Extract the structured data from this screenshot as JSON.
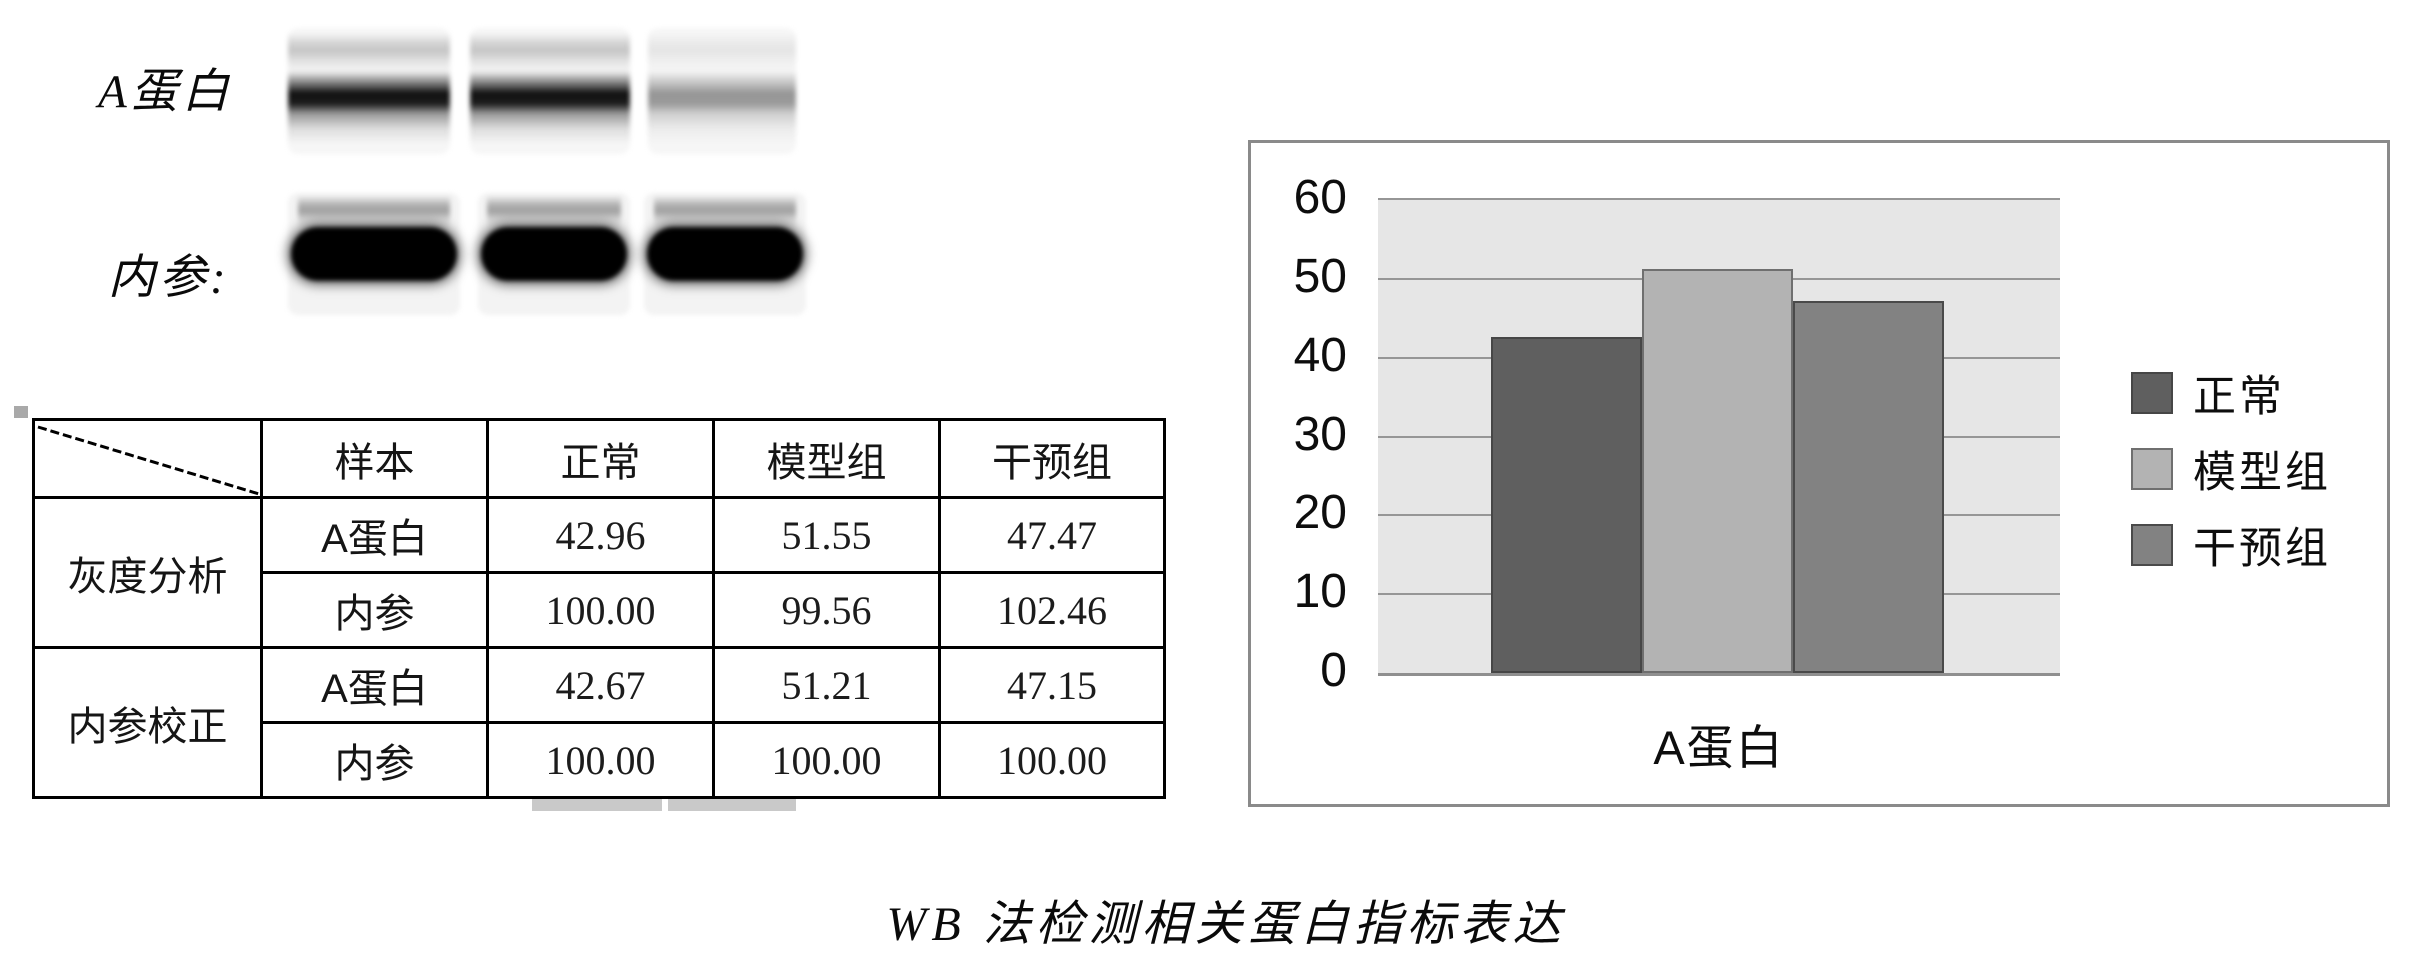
{
  "wb_panel": {
    "protein_label": "A蛋白",
    "reference_label": "内参:"
  },
  "table": {
    "header": [
      "样本",
      "正常",
      "模型组",
      "干预组"
    ],
    "groups": [
      {
        "label": "灰度分析",
        "rows": [
          {
            "sample": "A蛋白",
            "values": [
              "42.96",
              "51.55",
              "47.47"
            ]
          },
          {
            "sample": "内参",
            "values": [
              "100.00",
              "99.56",
              "102.46"
            ]
          }
        ]
      },
      {
        "label": "内参校正",
        "rows": [
          {
            "sample": "A蛋白",
            "values": [
              "42.67",
              "51.21",
              "47.15"
            ]
          },
          {
            "sample": "内参",
            "values": [
              "100.00",
              "100.00",
              "100.00"
            ]
          }
        ]
      }
    ]
  },
  "chart_data": {
    "type": "bar",
    "title": "",
    "categories": [
      "A蛋白"
    ],
    "series": [
      {
        "name": "正常",
        "values": [
          42.67
        ],
        "color": "#5f5f5f",
        "border": "#464646"
      },
      {
        "name": "模型组",
        "values": [
          51.21
        ],
        "color": "#b3b3b3",
        "border": "#6f6f6f"
      },
      {
        "name": "干预组",
        "values": [
          47.15
        ],
        "color": "#828282",
        "border": "#4a4a4a"
      }
    ],
    "xlabel": "A蛋白",
    "ylabel": "",
    "ylim": [
      0,
      60
    ],
    "yticks": [
      0,
      10,
      20,
      30,
      40,
      50,
      60
    ],
    "grid": true,
    "legend_position": "right",
    "plot_bg": "#e6e6e6",
    "gridline_color": "#969696"
  },
  "caption": "WB 法检测相关蛋白指标表达"
}
